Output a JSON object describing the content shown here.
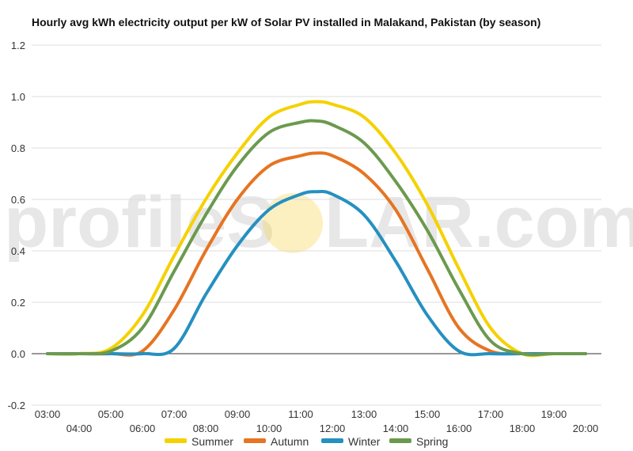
{
  "chart_data": {
    "type": "line",
    "title": "Hourly avg kWh electricity output per kW of Solar PV installed in Malakand, Pakistan (by season)",
    "xlabel": "",
    "ylabel": "",
    "x": [
      3,
      4,
      5,
      6,
      7,
      8,
      9,
      10,
      11,
      11.5,
      12,
      13,
      14,
      15,
      16,
      17,
      18,
      19,
      20
    ],
    "x_tick_labels": [
      "03:00",
      "04:00",
      "05:00",
      "06:00",
      "07:00",
      "08:00",
      "09:00",
      "10:00",
      "11:00",
      "12:00",
      "13:00",
      "14:00",
      "15:00",
      "16:00",
      "17:00",
      "18:00",
      "19:00",
      "20:00"
    ],
    "x_ticks": [
      3,
      4,
      5,
      6,
      7,
      8,
      9,
      10,
      11,
      12,
      13,
      14,
      15,
      16,
      17,
      18,
      19,
      20
    ],
    "xlim": [
      2.5,
      20.5
    ],
    "ylim": [
      -0.2,
      1.2
    ],
    "y_ticks": [
      -0.2,
      0.0,
      0.2,
      0.4,
      0.6,
      0.8,
      1.0,
      1.2
    ],
    "y_tick_labels": [
      "-0.2",
      "0.0",
      "0.2",
      "0.4",
      "0.6",
      "0.8",
      "1.0",
      "1.2"
    ],
    "grid": true,
    "legend_position": "bottom",
    "series": [
      {
        "name": "Summer",
        "color": "#f5d100",
        "values": [
          0,
          0,
          0.02,
          0.15,
          0.38,
          0.6,
          0.78,
          0.92,
          0.97,
          0.98,
          0.97,
          0.92,
          0.78,
          0.58,
          0.33,
          0.1,
          0,
          0,
          0
        ]
      },
      {
        "name": "Autumn",
        "color": "#e67422",
        "values": [
          0,
          0,
          0,
          0.01,
          0.17,
          0.4,
          0.6,
          0.73,
          0.77,
          0.78,
          0.77,
          0.7,
          0.56,
          0.33,
          0.1,
          0.01,
          0,
          0,
          0
        ]
      },
      {
        "name": "Winter",
        "color": "#2690c0",
        "values": [
          0,
          0,
          0,
          0,
          0.02,
          0.23,
          0.42,
          0.56,
          0.62,
          0.63,
          0.62,
          0.54,
          0.36,
          0.15,
          0.01,
          0,
          0,
          0,
          0
        ]
      },
      {
        "name": "Spring",
        "color": "#6b9a4e",
        "values": [
          0,
          0,
          0.01,
          0.1,
          0.32,
          0.54,
          0.73,
          0.86,
          0.9,
          0.905,
          0.89,
          0.82,
          0.67,
          0.48,
          0.25,
          0.05,
          0,
          0,
          0
        ]
      }
    ]
  },
  "watermark": {
    "text_left": "profileS",
    "text_right": "LAR.com",
    "sun_color": "#f6d54a"
  }
}
